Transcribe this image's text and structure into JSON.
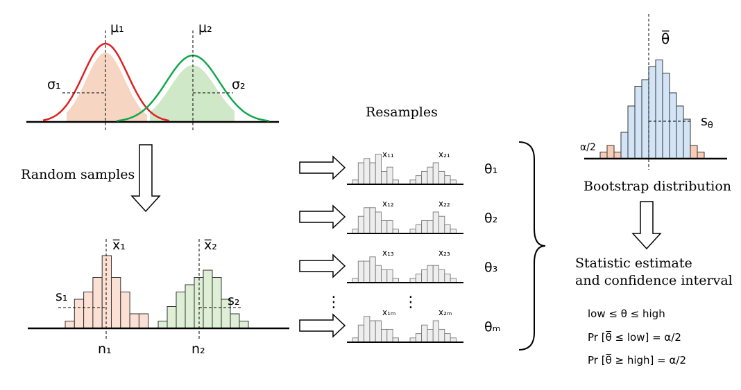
{
  "populations": {
    "mu1": "μ₁",
    "mu2": "μ₂",
    "sigma1": "σ₁",
    "sigma2": "σ₂",
    "curve1_color": "#e02020",
    "curve2_color": "#10a84a",
    "fill1_color": "#f3c7ae",
    "fill2_color": "#bfe0b4"
  },
  "random_samples_label": "Random samples",
  "samples": {
    "xbar1": "x̅₁",
    "xbar2": "x̅₂",
    "s1": "s₁",
    "s2": "s₂",
    "n1": "n₁",
    "n2": "n₂",
    "hist1_color": "#fbe0d3",
    "hist2_color": "#deefd6",
    "hist1_counts": [
      1,
      4,
      5,
      7,
      10,
      7,
      5,
      2,
      2
    ],
    "hist2_counts": [
      1,
      3,
      5,
      6,
      7,
      8,
      7,
      4,
      2,
      1
    ]
  },
  "resamples_title": "Resamples",
  "resamples": [
    {
      "x1": "x₁₁",
      "x2": "x₂₁",
      "theta": "θ₁"
    },
    {
      "x1": "x₁₂",
      "x2": "x₂₂",
      "theta": "θ₂"
    },
    {
      "x1": "x₁₃",
      "x2": "x₂₃",
      "theta": "θ₃"
    },
    {
      "x1": "x₁ₘ",
      "x2": "x₂ₘ",
      "theta": "θₘ"
    }
  ],
  "resample_hist_color": "#eeeeee",
  "resample_hist_counts": [
    [
      1,
      5,
      6,
      5,
      7,
      3,
      4,
      1,
      0,
      0,
      1,
      2,
      3,
      4,
      5,
      3,
      2,
      1
    ],
    [
      1,
      4,
      6,
      6,
      5,
      3,
      3,
      1,
      0,
      0,
      1,
      2,
      3,
      3,
      5,
      4,
      2,
      1
    ],
    [
      1,
      5,
      5,
      6,
      4,
      3,
      3,
      1,
      0,
      0,
      1,
      2,
      3,
      4,
      4,
      3,
      2,
      1
    ],
    [
      1,
      4,
      6,
      5,
      5,
      3,
      3,
      1,
      0,
      0,
      1,
      2,
      4,
      3,
      5,
      3,
      2,
      1
    ]
  ],
  "ellipsis": "⋮",
  "bootstrap": {
    "theta_bar": "θ̅",
    "s_theta": "s",
    "s_theta_sub": "θ",
    "alpha_half": "α/2",
    "label": "Bootstrap distribution",
    "center_color": "#d2e4f5",
    "tail_color": "#f8cdb8",
    "counts": [
      1,
      2,
      1,
      4,
      8,
      11,
      12,
      14,
      15,
      13,
      10,
      8,
      6,
      2,
      1
    ],
    "tail_bins_left": 3,
    "tail_bins_right": 2
  },
  "estimate": {
    "line1": "Statistic estimate",
    "line2": "and confidence interval",
    "formula1": "low ≤  θ  ≤ high",
    "formula2": "Pr [θ̅ ≤ low] = α/2",
    "formula3": "Pr [θ̅ ≥ high] =  α/2"
  }
}
